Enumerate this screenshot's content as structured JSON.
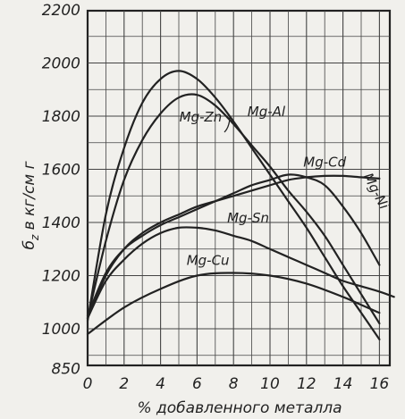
{
  "chart_data": {
    "type": "line",
    "xlabel": "% добавленного металла",
    "ylabel": "σ_z в кг/см²",
    "ylabel_main": "б",
    "ylabel_sub": "z",
    "ylabel_rest": " в кг/см г",
    "xlim": [
      0,
      17
    ],
    "ylim": [
      850,
      2200
    ],
    "x_ticks": [
      0,
      2,
      4,
      6,
      8,
      10,
      12,
      14,
      16
    ],
    "y_ticks": [
      850,
      1000,
      1200,
      1400,
      1600,
      1800,
      2000,
      2200
    ],
    "grid": true,
    "series": [
      {
        "name": "Mg-Zn",
        "x": [
          0,
          1,
          2,
          3,
          4,
          5,
          6,
          7,
          8,
          9,
          10,
          11,
          12,
          13,
          14,
          15,
          16
        ],
        "y": [
          1030,
          1430,
          1680,
          1850,
          1940,
          1970,
          1940,
          1870,
          1780,
          1680,
          1580,
          1480,
          1380,
          1270,
          1160,
          1060,
          960
        ]
      },
      {
        "name": "Mg-Al",
        "x": [
          0,
          1,
          2,
          3,
          4,
          5,
          6,
          7,
          8,
          9,
          10,
          11,
          12,
          13,
          14,
          15,
          16
        ],
        "y": [
          1040,
          1330,
          1560,
          1710,
          1810,
          1870,
          1880,
          1840,
          1770,
          1690,
          1610,
          1520,
          1440,
          1350,
          1240,
          1130,
          1020
        ]
      },
      {
        "name": "Mg-Cd",
        "x": [
          0,
          1,
          2,
          3,
          4,
          5,
          6,
          7,
          8,
          9,
          10,
          11,
          12,
          13,
          14,
          15,
          16
        ],
        "y": [
          1040,
          1200,
          1300,
          1360,
          1400,
          1430,
          1460,
          1480,
          1500,
          1520,
          1540,
          1560,
          1570,
          1575,
          1575,
          1570,
          1565
        ]
      },
      {
        "name": "Mg-Ni",
        "x": [
          0,
          1,
          2,
          3,
          4,
          5,
          6,
          7,
          8,
          9,
          10,
          11,
          12,
          13,
          14,
          15,
          16
        ],
        "y": [
          1050,
          1210,
          1300,
          1350,
          1390,
          1420,
          1450,
          1480,
          1510,
          1540,
          1560,
          1580,
          1570,
          1540,
          1460,
          1360,
          1240
        ]
      },
      {
        "name": "Mg-Sn",
        "x": [
          0,
          1,
          2,
          3,
          4,
          5,
          6,
          7,
          8,
          9,
          10,
          11,
          12,
          13,
          14,
          15,
          16,
          16.8
        ],
        "y": [
          1040,
          1180,
          1260,
          1320,
          1360,
          1380,
          1380,
          1370,
          1350,
          1330,
          1300,
          1270,
          1240,
          1210,
          1180,
          1160,
          1140,
          1120
        ]
      },
      {
        "name": "Mg-Cu",
        "x": [
          0,
          2,
          4,
          6,
          8,
          10,
          12,
          14,
          15,
          16
        ],
        "y": [
          980,
          1080,
          1150,
          1200,
          1210,
          1200,
          1170,
          1120,
          1090,
          1060
        ]
      }
    ],
    "annotations": [
      {
        "text": "Mg-Zn",
        "x": 6.2,
        "y": 1780
      },
      {
        "text": "Mg-Al",
        "x": 9.8,
        "y": 1800
      },
      {
        "text": "Mg-Cd",
        "x": 13.0,
        "y": 1610
      },
      {
        "text": "Mg-Ni",
        "x": 15.6,
        "y": 1510
      },
      {
        "text": "Mg-Sn",
        "x": 8.8,
        "y": 1400
      },
      {
        "text": "Mg-Cu",
        "x": 6.6,
        "y": 1240
      }
    ],
    "colors": {
      "background": "#f1f0ec",
      "ink": "#222222",
      "grid": "#444444"
    }
  }
}
